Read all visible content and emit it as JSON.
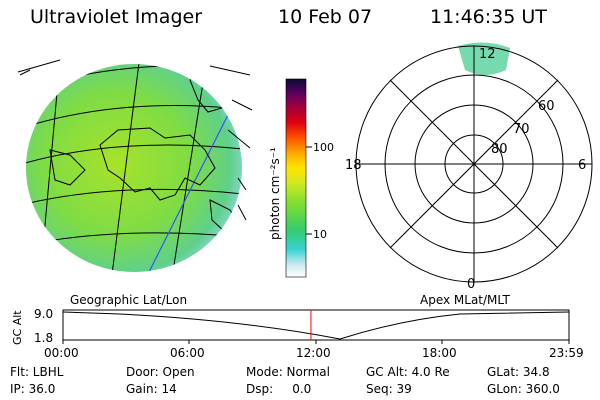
{
  "header": {
    "title": "Ultraviolet Imager",
    "date": "10 Feb 07",
    "time": "11:46:35 UT"
  },
  "colorbar": {
    "unit_label": "photon cm⁻²s⁻¹",
    "tick_labels": [
      "100",
      "10"
    ]
  },
  "polar": {
    "mlt_labels": {
      "top": "12",
      "left": "18",
      "right": "6",
      "bottom": "0"
    },
    "lat_labels": [
      "60",
      "70",
      "80"
    ]
  },
  "labels": {
    "geographic": "Geographic Lat/Lon",
    "apex": "Apex MLat/MLT",
    "gc_alt_axis": "GC Alt",
    "alt_max": "9.0",
    "alt_min": "1.8"
  },
  "timeline": {
    "ticks": [
      "00:00",
      "06:00",
      "12:00",
      "18:00",
      "23:59"
    ],
    "marker_fraction": 0.49
  },
  "info": {
    "flt": "Flt: LBHL",
    "door": "Door: Open",
    "mode": "Mode: Normal",
    "gc_alt": "GC Alt: 4.0 Re",
    "glat": "GLat:  34.8",
    "ip": "IP: 36.0",
    "gain": "Gain: 14",
    "dsp": "Dsp:     0.0",
    "seq": "Seq: 39",
    "glon": "GLon: 360.0"
  },
  "colors": {
    "disk": "#8ee23a",
    "grid_line": "#000000",
    "meridian": "#3355ff",
    "marker": "#ff0000"
  }
}
